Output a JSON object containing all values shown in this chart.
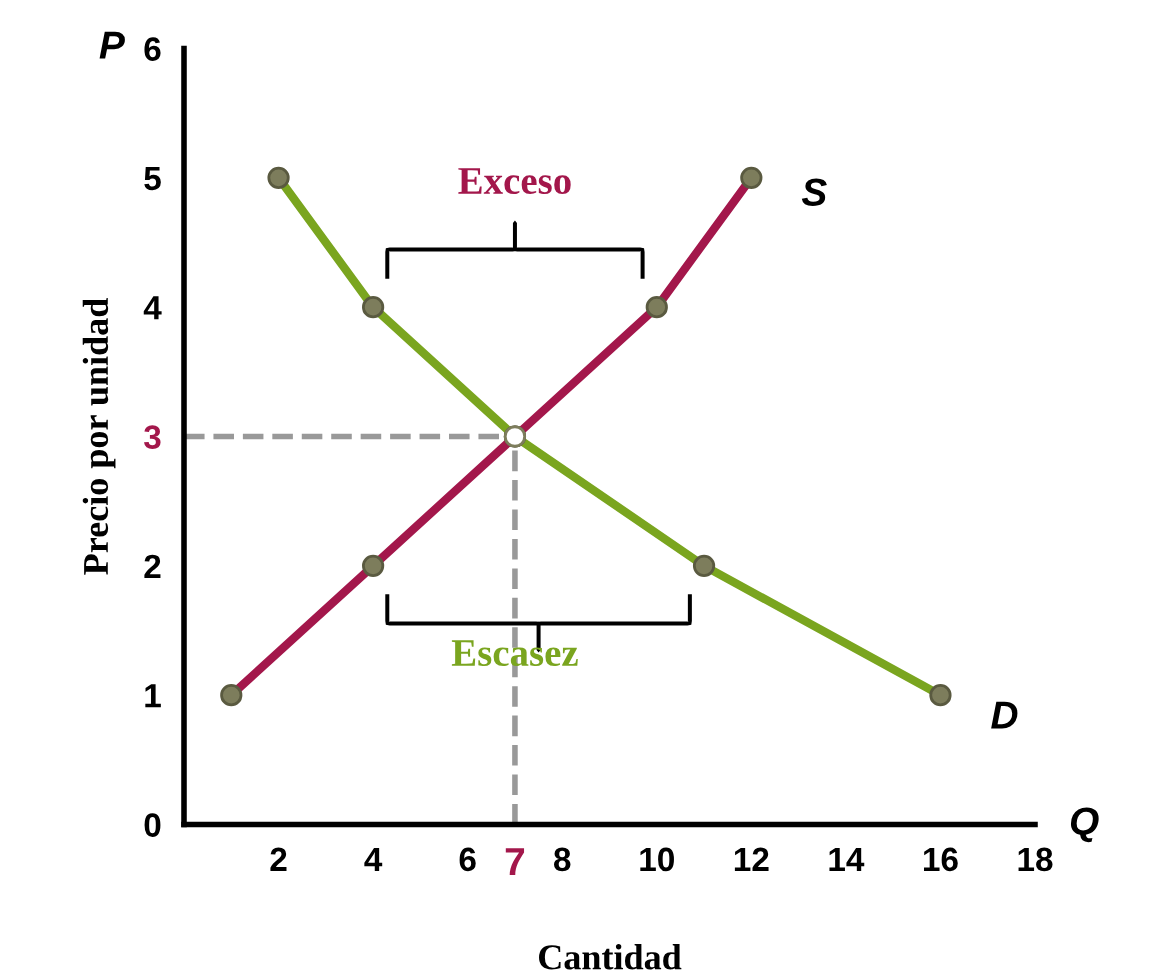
{
  "chart_data": {
    "type": "line",
    "xlabel": "Cantidad",
    "ylabel": "Precio por unidad",
    "x2label": "Q",
    "y2label": "P",
    "xlim": [
      0,
      18
    ],
    "ylim": [
      0,
      6
    ],
    "xticks": [
      2,
      4,
      6,
      7,
      8,
      10,
      12,
      14,
      16,
      18
    ],
    "yticks": [
      0,
      1,
      2,
      3,
      4,
      5,
      6
    ],
    "marker": "circle",
    "grid": false,
    "legend": false,
    "series": [
      {
        "name": "S",
        "color": "#a3174b",
        "x": [
          1,
          4,
          7,
          10,
          12
        ],
        "values": [
          1,
          2,
          3,
          4,
          5
        ]
      },
      {
        "name": "D",
        "color": "#7aa51f",
        "x": [
          2,
          4,
          7,
          11,
          16
        ],
        "values": [
          5,
          4,
          3,
          2,
          1
        ]
      }
    ],
    "ref_lines": [
      {
        "axis": "x",
        "value": 7,
        "color": "#999999",
        "line_style": "dashed"
      },
      {
        "axis": "y",
        "value": 3,
        "color": "#999999",
        "line_style": "dashed"
      }
    ],
    "annotations": [
      "Exceso",
      "Escasez"
    ]
  }
}
